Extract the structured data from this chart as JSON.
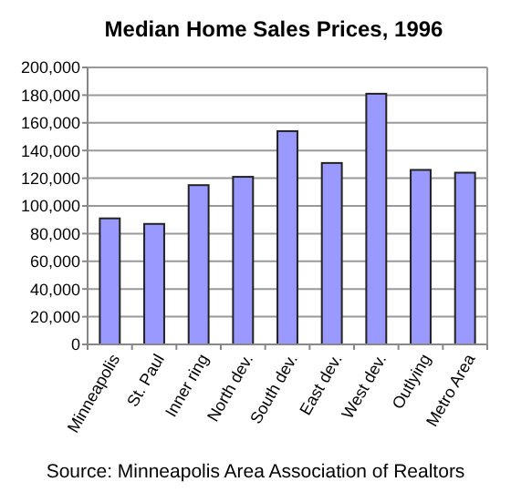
{
  "chart_data": {
    "type": "bar",
    "title": "Median Home Sales Prices, 1996",
    "categories": [
      "Minneapolis",
      "St. Paul",
      "Inner ring",
      "North dev.",
      "South dev.",
      "East dev.",
      "West dev.",
      "Outlying",
      "Metro Area"
    ],
    "values": [
      91000,
      87000,
      115000,
      121000,
      154000,
      131000,
      181000,
      126000,
      124000
    ],
    "color": "#9999ff",
    "ylim": [
      0,
      200000
    ],
    "yticks": [
      {
        "value": 0,
        "label": "0"
      },
      {
        "value": 20000,
        "label": "20,000"
      },
      {
        "value": 40000,
        "label": "40,000"
      },
      {
        "value": 60000,
        "label": "60,000"
      },
      {
        "value": 80000,
        "label": "80,000"
      },
      {
        "value": 100000,
        "label": "100,000"
      },
      {
        "value": 120000,
        "label": "120,000"
      },
      {
        "value": 140000,
        "label": "140,000"
      },
      {
        "value": 160000,
        "label": "160,000"
      },
      {
        "value": 180000,
        "label": "180,000"
      },
      {
        "value": 200000,
        "label": "200,000"
      }
    ],
    "grid": "y",
    "annotations": [
      "Source: Minneapolis Area Association of Realtors"
    ]
  }
}
